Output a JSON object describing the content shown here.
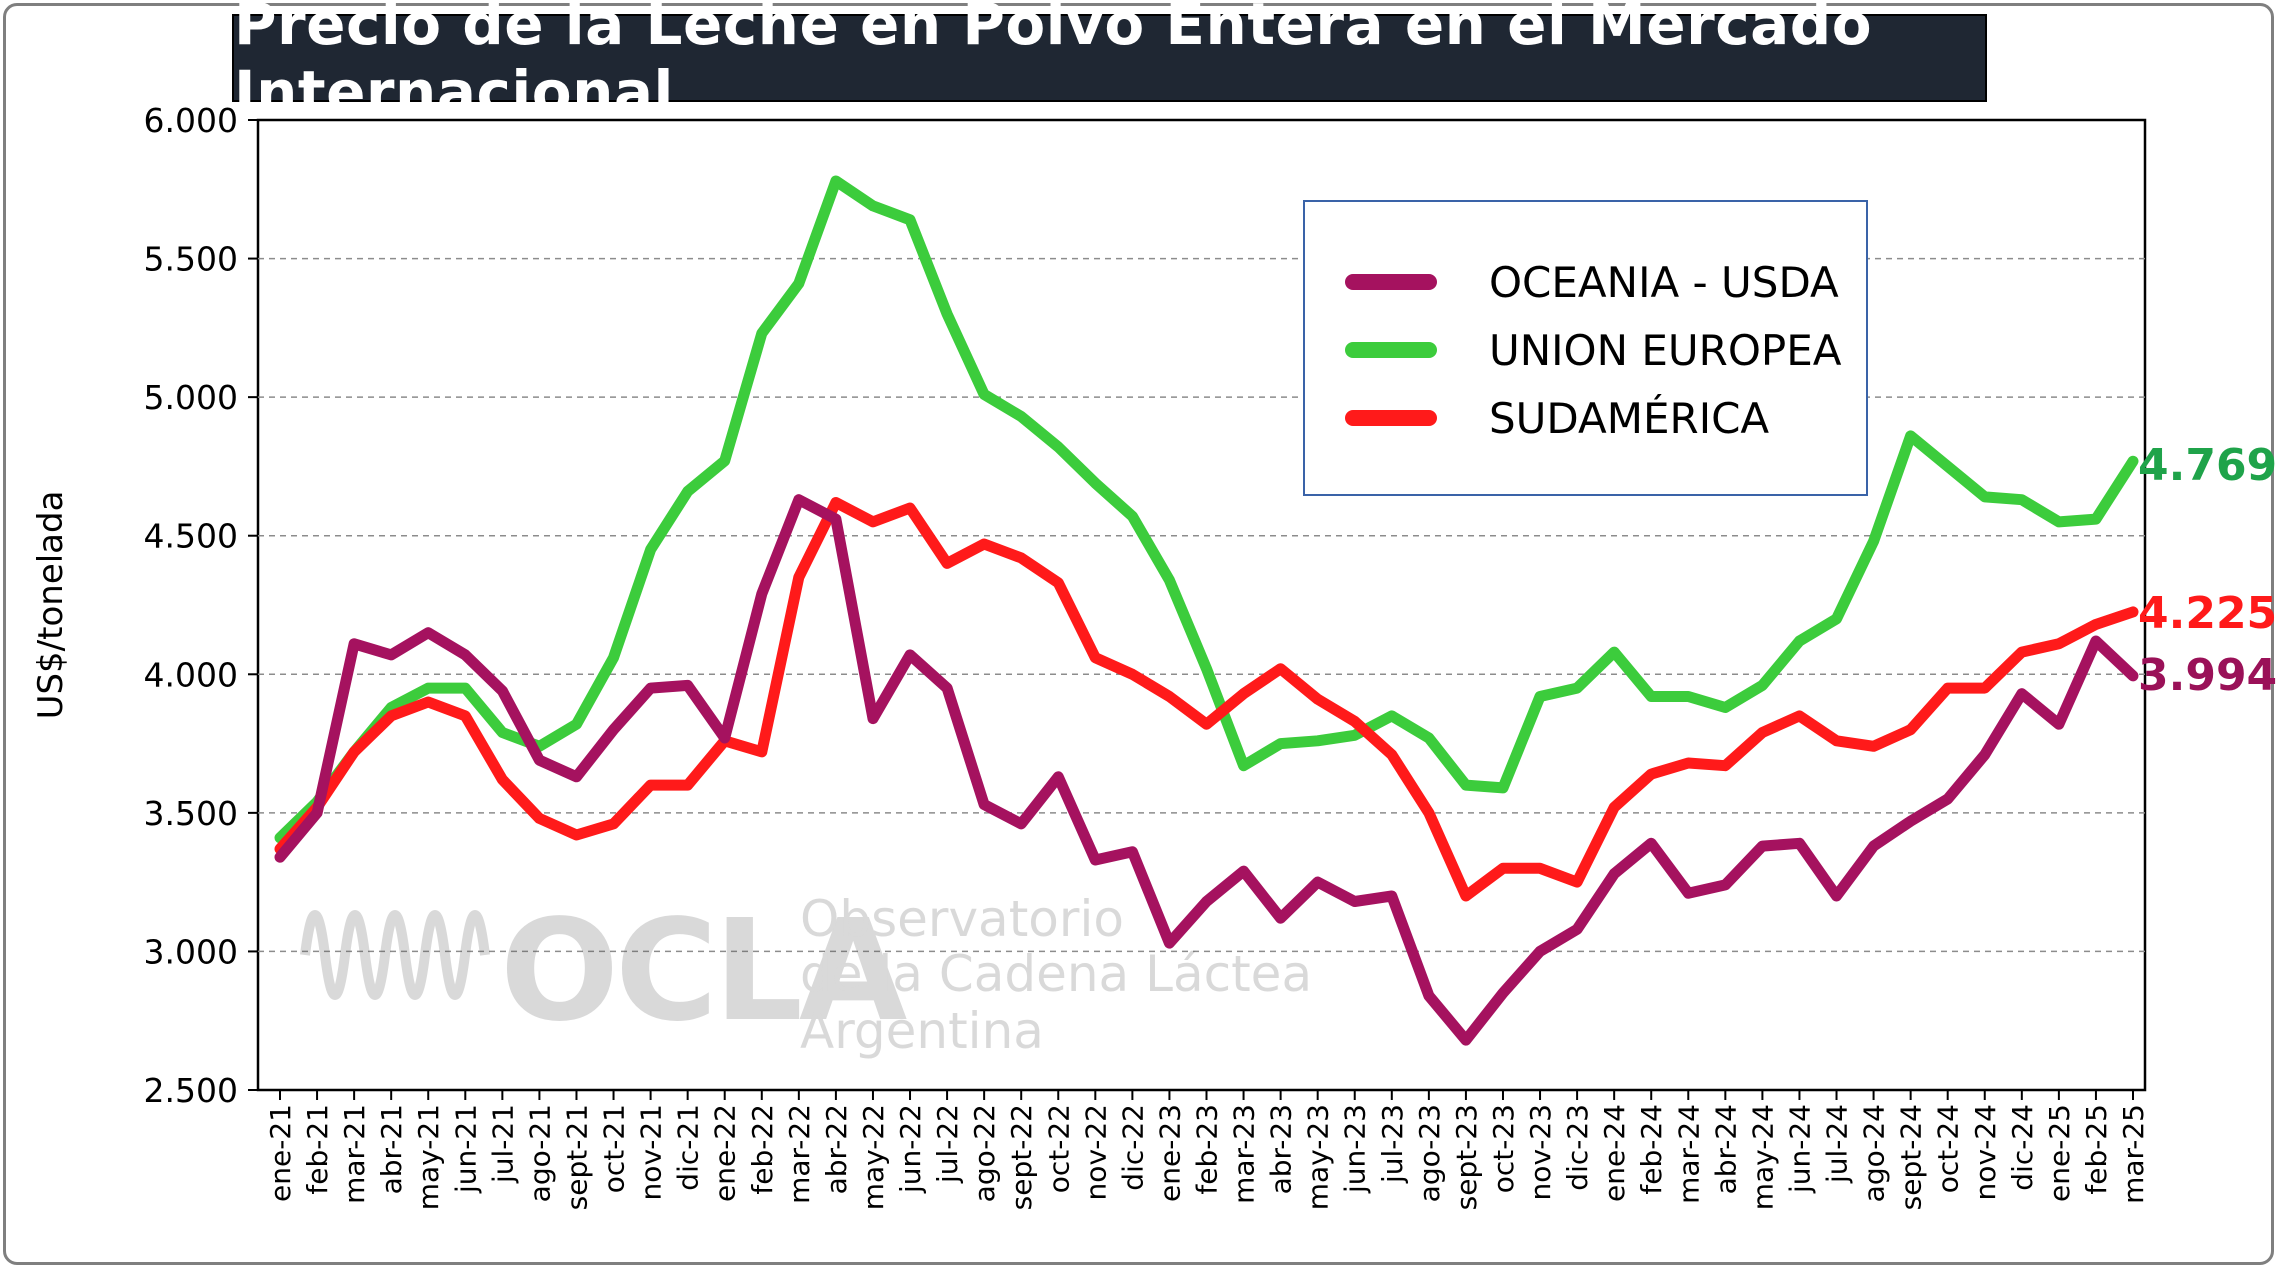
{
  "title": "Precio de la Leche en Polvo Entera en el Mercado Internacional",
  "watermark": {
    "brand": "OCLA",
    "line1": "Observatorio",
    "line2": "de la Cadena Láctea",
    "line3": "Argentina"
  },
  "chart_data": {
    "type": "line",
    "ylabel": "US$/tonelada",
    "ylim": [
      2500,
      6000
    ],
    "yticks": [
      2500,
      3000,
      3500,
      4000,
      4500,
      5000,
      5500,
      6000
    ],
    "ytick_labels": [
      "2.500",
      "3.000",
      "3.500",
      "4.000",
      "4.500",
      "5.000",
      "5.500",
      "6.000"
    ],
    "grid": "horizontal dashed",
    "legend_position": "top-right",
    "categories": [
      "ene-21",
      "feb-21",
      "mar-21",
      "abr-21",
      "may-21",
      "jun-21",
      "jul-21",
      "ago-21",
      "sept-21",
      "oct-21",
      "nov-21",
      "dic-21",
      "ene-22",
      "feb-22",
      "mar-22",
      "abr-22",
      "may-22",
      "jun-22",
      "jul-22",
      "ago-22",
      "sept-22",
      "oct-22",
      "nov-22",
      "dic-22",
      "ene-23",
      "feb-23",
      "mar-23",
      "abr-23",
      "may-23",
      "jun-23",
      "jul-23",
      "ago-23",
      "sept-23",
      "oct-23",
      "nov-23",
      "dic-23",
      "ene-24",
      "feb-24",
      "mar-24",
      "abr-24",
      "may-24",
      "jun-24",
      "jul-24",
      "ago-24",
      "sept-24",
      "oct-24",
      "nov-24",
      "dic-24",
      "ene-25",
      "feb-25",
      "mar-25"
    ],
    "series": [
      {
        "name": "OCEANIA - USDA",
        "color": "#a5125f",
        "end_label": "3.994",
        "values": [
          3340,
          3500,
          4110,
          4070,
          4150,
          4070,
          3940,
          3690,
          3630,
          3800,
          3950,
          3960,
          3770,
          4290,
          4630,
          4560,
          3840,
          4070,
          3950,
          3530,
          3460,
          3630,
          3330,
          3360,
          3030,
          3180,
          3290,
          3120,
          3250,
          3180,
          3200,
          2840,
          2680,
          2850,
          3000,
          3080,
          3280,
          3390,
          3210,
          3240,
          3380,
          3390,
          3200,
          3380,
          3470,
          3550,
          3710,
          3930,
          3820,
          4120,
          3994
        ]
      },
      {
        "name": "UNION EUROPEA",
        "color": "#3ccc3c",
        "end_label": "4.769",
        "values": [
          3410,
          3540,
          3720,
          3880,
          3950,
          3950,
          3790,
          3740,
          3820,
          4060,
          4450,
          4660,
          4770,
          5230,
          5410,
          5780,
          5690,
          5640,
          5300,
          5010,
          4930,
          4820,
          4690,
          4570,
          4340,
          4020,
          3670,
          3750,
          3760,
          3780,
          3850,
          3770,
          3600,
          3590,
          3920,
          3950,
          4080,
          3920,
          3920,
          3880,
          3960,
          4120,
          4200,
          4480,
          4860,
          4750,
          4640,
          4630,
          4550,
          4560,
          4769
        ]
      },
      {
        "name": "SUDAMÉRICA",
        "color": "#ff1a1a",
        "end_label": "4.225",
        "values": [
          3370,
          3520,
          3720,
          3850,
          3900,
          3850,
          3620,
          3480,
          3420,
          3460,
          3600,
          3600,
          3760,
          3720,
          4350,
          4620,
          4550,
          4600,
          4400,
          4470,
          4420,
          4330,
          4060,
          4000,
          3920,
          3820,
          3930,
          4020,
          3910,
          3830,
          3710,
          3500,
          3200,
          3300,
          3300,
          3250,
          3520,
          3640,
          3680,
          3670,
          3790,
          3850,
          3760,
          3740,
          3800,
          3950,
          3950,
          4080,
          4110,
          4180,
          4225
        ]
      }
    ]
  }
}
